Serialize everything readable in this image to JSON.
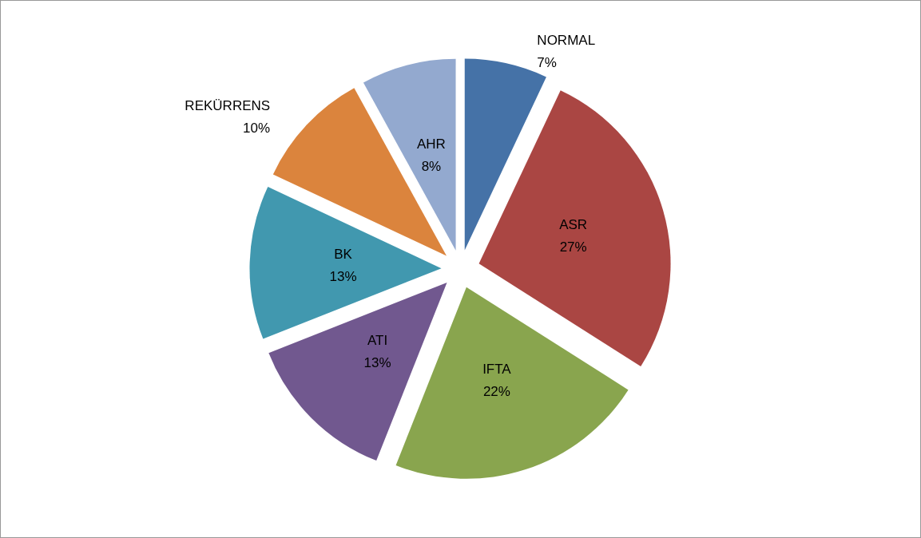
{
  "chart_data": {
    "type": "pie",
    "categories": [
      "NORMAL",
      "ASR",
      "IFTA",
      "ATI",
      "BK",
      "REKÜRRENS",
      "AHR"
    ],
    "values": [
      7,
      27,
      22,
      13,
      13,
      10,
      8
    ],
    "colors": [
      "#4572a7",
      "#aa4643",
      "#89a54e",
      "#71588f",
      "#4198af",
      "#db843d",
      "#93a9cf"
    ],
    "value_labels": [
      "7%",
      "27%",
      "22%",
      "13%",
      "13%",
      "10%",
      "8%"
    ],
    "legend": false
  }
}
